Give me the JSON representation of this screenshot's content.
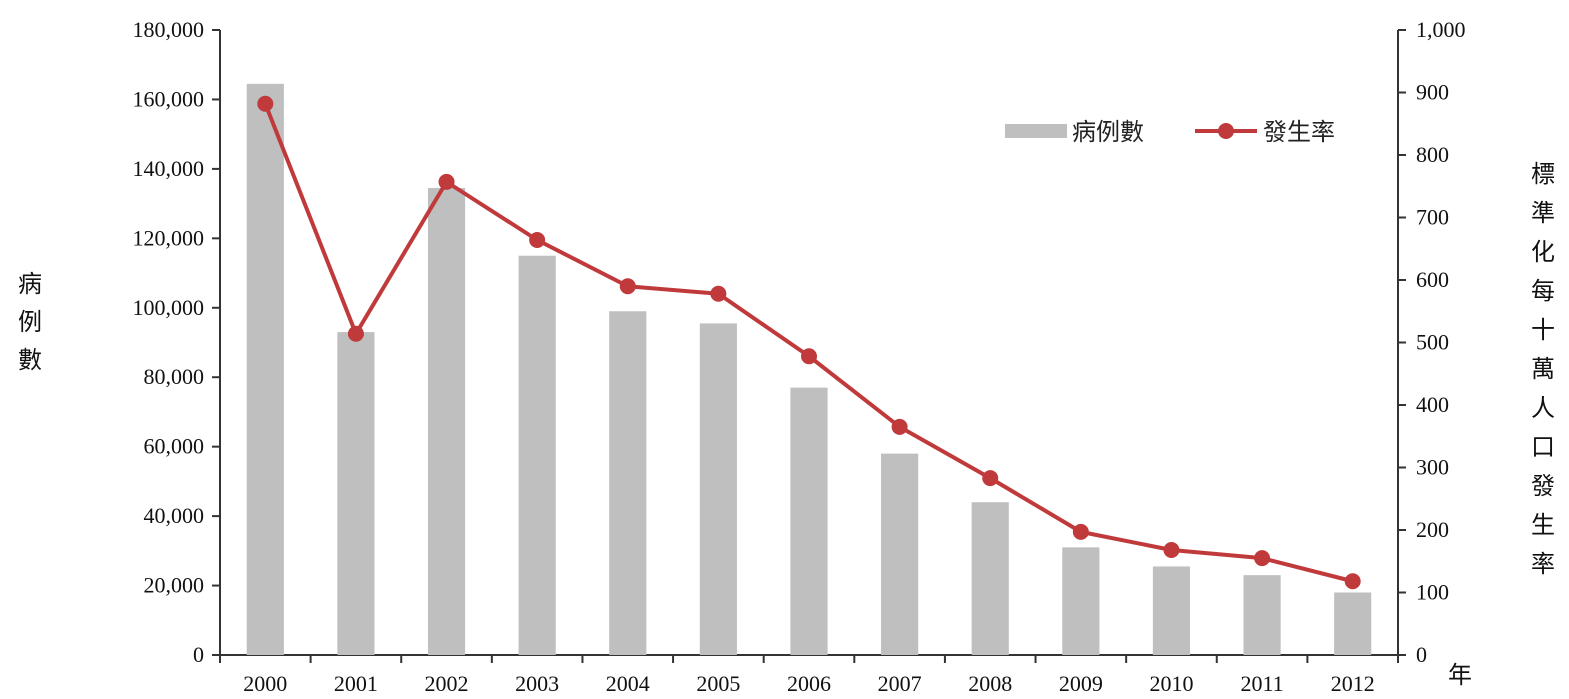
{
  "chart_data": {
    "type": "bar",
    "categories": [
      "2000",
      "2001",
      "2002",
      "2003",
      "2004",
      "2005",
      "2006",
      "2007",
      "2008",
      "2009",
      "2010",
      "2011",
      "2012"
    ],
    "series": [
      {
        "name": "病例數",
        "type": "bar",
        "axis": "left",
        "color": "#bfbfbf",
        "values": [
          164500,
          93000,
          134500,
          115000,
          99000,
          95500,
          77000,
          58000,
          44000,
          31000,
          25500,
          23000,
          18000
        ]
      },
      {
        "name": "發生率",
        "type": "line",
        "axis": "right",
        "color": "#c0393b",
        "values": [
          882,
          514,
          757,
          664,
          590,
          578,
          478,
          365,
          283,
          197,
          168,
          155,
          118
        ]
      }
    ],
    "y_left": {
      "label": "病例數",
      "ylim": [
        0,
        180000
      ],
      "ticks": [
        "0",
        "20,000",
        "40,000",
        "60,000",
        "80,000",
        "100,000",
        "120,000",
        "140,000",
        "160,000",
        "180,000"
      ]
    },
    "y_right": {
      "label": "標準化每十萬人口發生率",
      "ylim": [
        0,
        1000
      ],
      "ticks": [
        "0",
        "100",
        "200",
        "300",
        "400",
        "500",
        "600",
        "700",
        "800",
        "900",
        "1,000"
      ]
    },
    "xlabel": "年",
    "legend_position": "top-right",
    "grid": false
  }
}
